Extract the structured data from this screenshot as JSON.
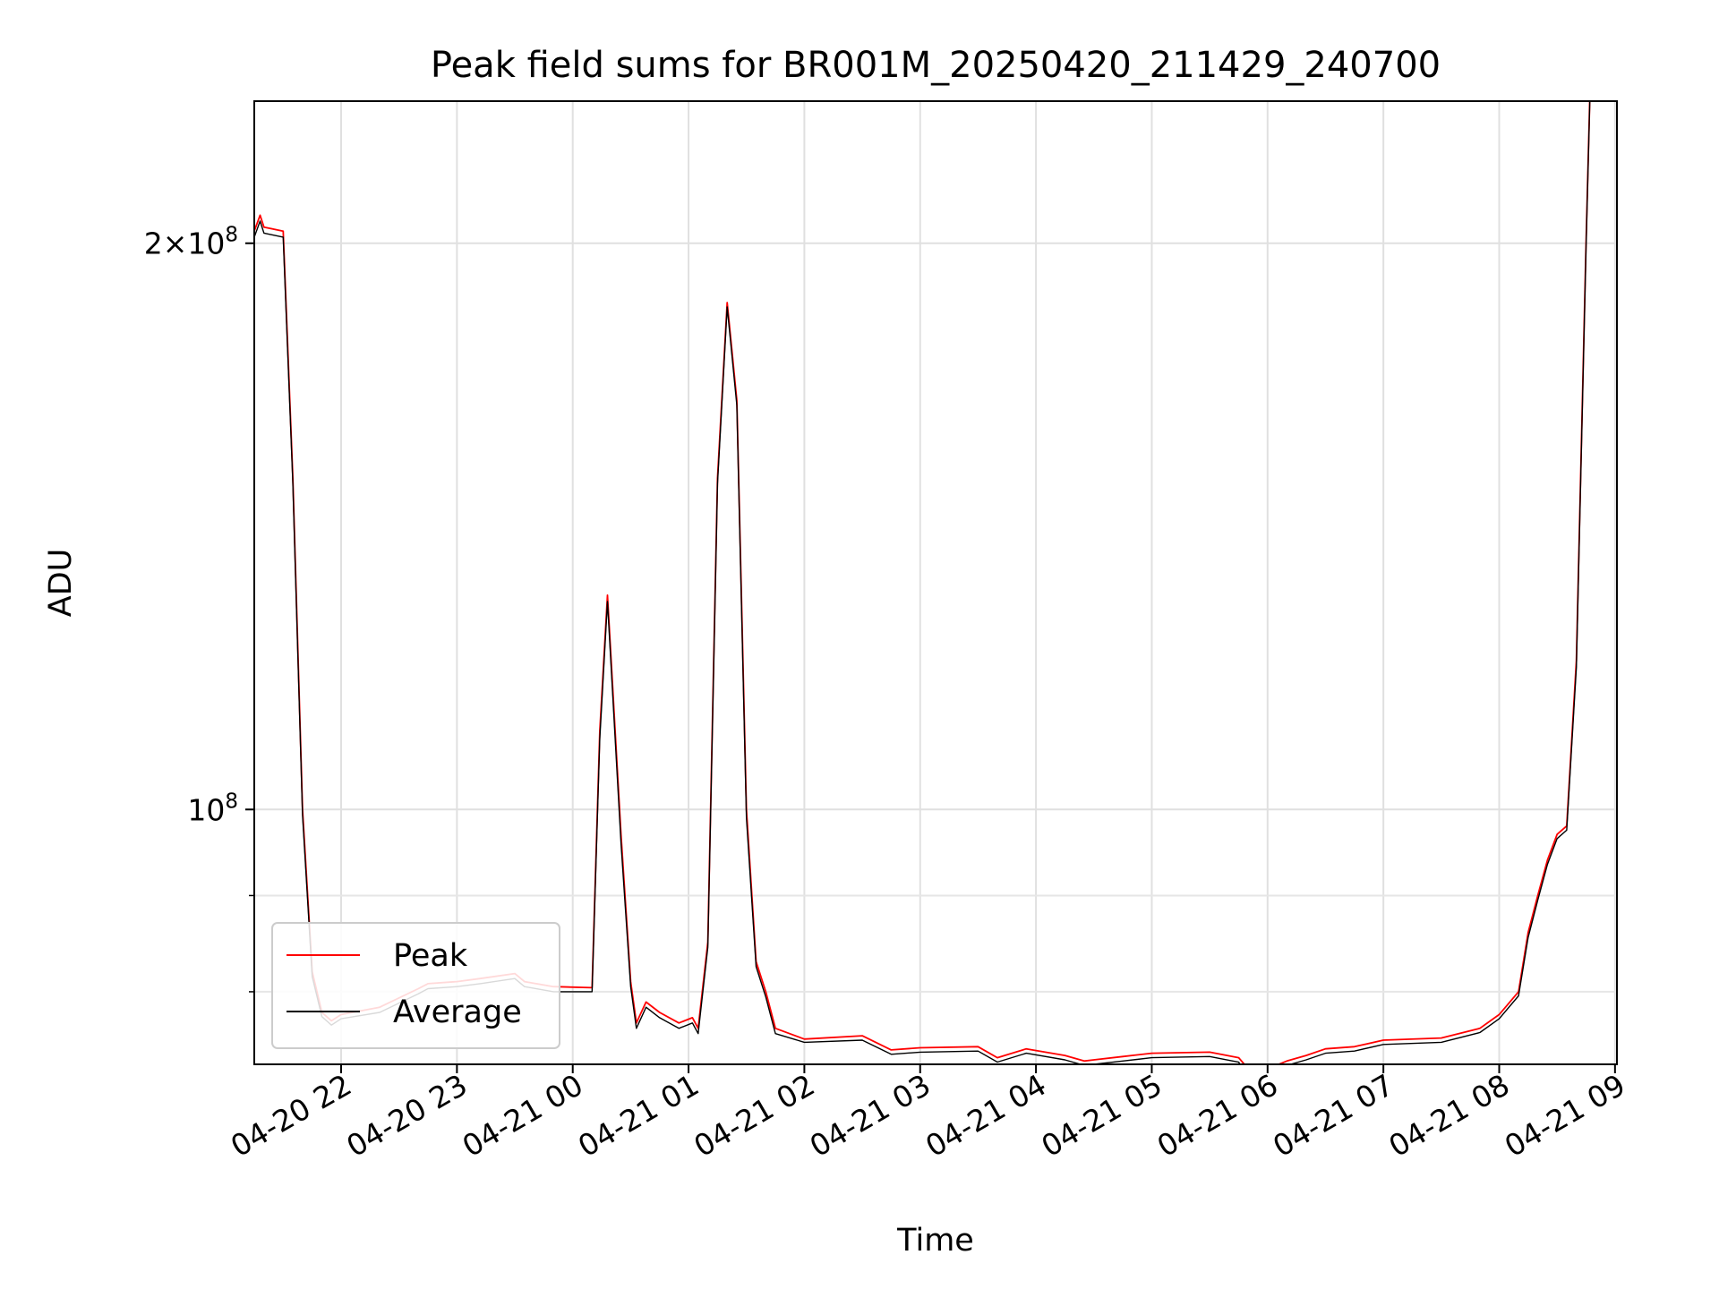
{
  "chart_data": {
    "type": "line",
    "title": "Peak field sums for BR001M_20250420_211429_240700",
    "xlabel": "Time",
    "ylabel": "ADU",
    "yscale": "log",
    "xlim": [
      "2025-04-20 21:15",
      "2025-04-21 09:01"
    ],
    "ylim": [
      73200000,
      238000000
    ],
    "grid": true,
    "legend_position": "lower-left",
    "x_ticks": [
      "2025-04-20 22:00",
      "2025-04-20 23:00",
      "2025-04-21 00:00",
      "2025-04-21 01:00",
      "2025-04-21 02:00",
      "2025-04-21 03:00",
      "2025-04-21 04:00",
      "2025-04-21 05:00",
      "2025-04-21 06:00",
      "2025-04-21 07:00",
      "2025-04-21 08:00",
      "2025-04-21 09:00"
    ],
    "x_tick_labels": [
      "04-20 22",
      "04-20 23",
      "04-21 00",
      "04-21 01",
      "04-21 02",
      "04-21 03",
      "04-21 04",
      "04-21 05",
      "04-21 06",
      "04-21 07",
      "04-21 08",
      "04-21 09"
    ],
    "y_major_ticks": [
      100000000,
      200000000
    ],
    "y_major_tick_labels": [
      {
        "mantissa": "",
        "exp": "8"
      },
      {
        "mantissa": "2",
        "exp": "8"
      }
    ],
    "y_minor_ticks": [
      80000000,
      90000000
    ],
    "series": [
      {
        "name": "Peak",
        "color": "#ff0000",
        "x": [
          "2025-04-20 21:15",
          "2025-04-20 21:18",
          "2025-04-20 21:20",
          "2025-04-20 21:30",
          "2025-04-20 21:35",
          "2025-04-20 21:40",
          "2025-04-20 21:45",
          "2025-04-20 21:50",
          "2025-04-20 21:55",
          "2025-04-20 22:00",
          "2025-04-20 22:20",
          "2025-04-20 22:40",
          "2025-04-20 22:45",
          "2025-04-20 23:00",
          "2025-04-20 23:12",
          "2025-04-20 23:30",
          "2025-04-20 23:35",
          "2025-04-20 23:50",
          "2025-04-21 00:10",
          "2025-04-21 00:14",
          "2025-04-21 00:18",
          "2025-04-21 00:25",
          "2025-04-21 00:30",
          "2025-04-21 00:33",
          "2025-04-21 00:38",
          "2025-04-21 00:45",
          "2025-04-21 00:55",
          "2025-04-21 01:02",
          "2025-04-21 01:05",
          "2025-04-21 01:10",
          "2025-04-21 01:15",
          "2025-04-21 01:20",
          "2025-04-21 01:25",
          "2025-04-21 01:30",
          "2025-04-21 01:35",
          "2025-04-21 01:40",
          "2025-04-21 01:45",
          "2025-04-21 02:00",
          "2025-04-21 02:30",
          "2025-04-21 02:45",
          "2025-04-21 03:00",
          "2025-04-21 03:30",
          "2025-04-21 03:40",
          "2025-04-21 03:55",
          "2025-04-21 04:15",
          "2025-04-21 04:25",
          "2025-04-21 04:30",
          "2025-04-21 04:45",
          "2025-04-21 05:00",
          "2025-04-21 05:30",
          "2025-04-21 05:45",
          "2025-04-21 05:50",
          "2025-04-21 06:00",
          "2025-04-21 06:10",
          "2025-04-21 06:20",
          "2025-04-21 06:30",
          "2025-04-21 06:45",
          "2025-04-21 07:00",
          "2025-04-21 07:30",
          "2025-04-21 07:50",
          "2025-04-21 08:00",
          "2025-04-21 08:10",
          "2025-04-21 08:15",
          "2025-04-21 08:20",
          "2025-04-21 08:25",
          "2025-04-21 08:30",
          "2025-04-21 08:35",
          "2025-04-21 08:40",
          "2025-04-21 08:45",
          "2025-04-21 08:47"
        ],
        "y": [
          203000000,
          207000000,
          204000000,
          203000000,
          150000000,
          100000000,
          82000000,
          78000000,
          77200000,
          77800000,
          78500000,
          80300000,
          80800000,
          81000000,
          81300000,
          81800000,
          81000000,
          80500000,
          80400000,
          110000000,
          130000000,
          97000000,
          81000000,
          77000000,
          79000000,
          78000000,
          77000000,
          77500000,
          76500000,
          85000000,
          150000000,
          186000000,
          165000000,
          100000000,
          83000000,
          80000000,
          76500000,
          75500000,
          75800000,
          74500000,
          74700000,
          74800000,
          73800000,
          74600000,
          74000000,
          73500000,
          73600000,
          73900000,
          74200000,
          74300000,
          73800000,
          72800000,
          72800000,
          73500000,
          74000000,
          74600000,
          74800000,
          75400000,
          75600000,
          76500000,
          77800000,
          80000000,
          86000000,
          90000000,
          94000000,
          97000000,
          98000000,
          120000000,
          200000000,
          240000000
        ]
      },
      {
        "name": "Average",
        "color": "#000000",
        "x": [
          "2025-04-20 21:15",
          "2025-04-20 21:18",
          "2025-04-20 21:20",
          "2025-04-20 21:30",
          "2025-04-20 21:35",
          "2025-04-20 21:40",
          "2025-04-20 21:45",
          "2025-04-20 21:50",
          "2025-04-20 21:55",
          "2025-04-20 22:00",
          "2025-04-20 22:20",
          "2025-04-20 22:40",
          "2025-04-20 22:45",
          "2025-04-20 23:00",
          "2025-04-20 23:12",
          "2025-04-20 23:30",
          "2025-04-20 23:35",
          "2025-04-20 23:50",
          "2025-04-21 00:10",
          "2025-04-21 00:14",
          "2025-04-21 00:18",
          "2025-04-21 00:25",
          "2025-04-21 00:30",
          "2025-04-21 00:33",
          "2025-04-21 00:38",
          "2025-04-21 00:45",
          "2025-04-21 00:55",
          "2025-04-21 01:02",
          "2025-04-21 01:05",
          "2025-04-21 01:10",
          "2025-04-21 01:15",
          "2025-04-21 01:20",
          "2025-04-21 01:25",
          "2025-04-21 01:30",
          "2025-04-21 01:35",
          "2025-04-21 01:40",
          "2025-04-21 01:45",
          "2025-04-21 02:00",
          "2025-04-21 02:30",
          "2025-04-21 02:45",
          "2025-04-21 03:00",
          "2025-04-21 03:30",
          "2025-04-21 03:40",
          "2025-04-21 03:55",
          "2025-04-21 04:15",
          "2025-04-21 04:25",
          "2025-04-21 04:30",
          "2025-04-21 04:45",
          "2025-04-21 05:00",
          "2025-04-21 05:30",
          "2025-04-21 05:45",
          "2025-04-21 05:50",
          "2025-04-21 06:00",
          "2025-04-21 06:10",
          "2025-04-21 06:20",
          "2025-04-21 06:30",
          "2025-04-21 06:45",
          "2025-04-21 07:00",
          "2025-04-21 07:30",
          "2025-04-21 07:50",
          "2025-04-21 08:00",
          "2025-04-21 08:10",
          "2025-04-21 08:15",
          "2025-04-21 08:20",
          "2025-04-21 08:25",
          "2025-04-21 08:30",
          "2025-04-21 08:35",
          "2025-04-21 08:40",
          "2025-04-21 08:45",
          "2025-04-21 08:47"
        ],
        "y": [
          201500000,
          205500000,
          202500000,
          201500000,
          149000000,
          99300000,
          81500000,
          77600000,
          76800000,
          77400000,
          78000000,
          79800000,
          80300000,
          80500000,
          80800000,
          81300000,
          80500000,
          80000000,
          80000000,
          109000000,
          129000000,
          96000000,
          80500000,
          76500000,
          78500000,
          77500000,
          76500000,
          77000000,
          76000000,
          84500000,
          149000000,
          185000000,
          164000000,
          99000000,
          82500000,
          79500000,
          76000000,
          75200000,
          75400000,
          74100000,
          74300000,
          74400000,
          73400000,
          74200000,
          73600000,
          73100000,
          73200000,
          73500000,
          73800000,
          73900000,
          73400000,
          72000000,
          72000000,
          73100000,
          73600000,
          74200000,
          74400000,
          75000000,
          75200000,
          76100000,
          77400000,
          79600000,
          85500000,
          89500000,
          93500000,
          96500000,
          97500000,
          119000000,
          199000000,
          239000000
        ]
      }
    ]
  }
}
